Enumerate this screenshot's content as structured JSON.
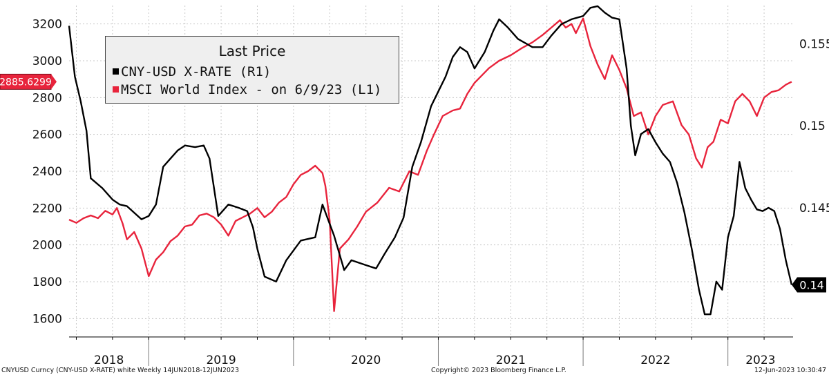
{
  "legend": {
    "title": "Last Price",
    "rows": [
      {
        "label": "CNY-USD X-RATE  (R1)",
        "color": "#000000"
      },
      {
        "label": "MSCI World Index -  on 6/9/23 (L1)",
        "color": "#e8243c"
      }
    ]
  },
  "footer": {
    "left": "CNYUSD Curncy (CNY-USD X-RATE) white  Weekly 14JUN2018-12JUN2023",
    "center": "Copyright© 2023 Bloomberg Finance L.P.",
    "right": "12-Jun-2023 10:30:47"
  },
  "chart_data": {
    "type": "line",
    "title": "Last Price",
    "x_range": [
      2018.45,
      2023.45
    ],
    "years": [
      "2018",
      "2019",
      "2020",
      "2021",
      "2022",
      "2023"
    ],
    "left_axis": {
      "ticks": [
        "3200",
        "3000",
        "2800",
        "2600",
        "2400",
        "2200",
        "2000",
        "1800",
        "1600"
      ],
      "range": [
        1500,
        3300
      ]
    },
    "right_axis": {
      "ticks": [
        "0.155",
        "0.15",
        "0.145"
      ],
      "range": [
        0.13712,
        0.15734
      ]
    },
    "last_value_labels": {
      "left": "2885.6299",
      "right": "0.14"
    },
    "grid": "dashed",
    "legend_position": "top-left",
    "series": [
      {
        "name": "CNY-USD X-RATE  (R1)",
        "axis": "right",
        "color": "#000000",
        "points": [
          [
            2018.45,
            0.1561
          ],
          [
            2018.49,
            0.153
          ],
          [
            2018.53,
            0.1515
          ],
          [
            2018.57,
            0.1497
          ],
          [
            2018.6,
            0.1468
          ],
          [
            2018.68,
            0.1462
          ],
          [
            2018.75,
            0.1455
          ],
          [
            2018.8,
            0.1452
          ],
          [
            2018.85,
            0.1451
          ],
          [
            2018.9,
            0.1447
          ],
          [
            2018.95,
            0.1443
          ],
          [
            2019.0,
            0.1445
          ],
          [
            2019.05,
            0.1452
          ],
          [
            2019.1,
            0.1475
          ],
          [
            2019.15,
            0.148
          ],
          [
            2019.2,
            0.1485
          ],
          [
            2019.25,
            0.1488
          ],
          [
            2019.32,
            0.1487
          ],
          [
            2019.38,
            0.1488
          ],
          [
            2019.42,
            0.148
          ],
          [
            2019.48,
            0.1445
          ],
          [
            2019.55,
            0.1452
          ],
          [
            2019.62,
            0.145
          ],
          [
            2019.68,
            0.1448
          ],
          [
            2019.72,
            0.1438
          ],
          [
            2019.75,
            0.1425
          ],
          [
            2019.8,
            0.1408
          ],
          [
            2019.88,
            0.1405
          ],
          [
            2019.95,
            0.1418
          ],
          [
            2020.05,
            0.143
          ],
          [
            2020.15,
            0.1432
          ],
          [
            2020.2,
            0.1452
          ],
          [
            2020.28,
            0.1433
          ],
          [
            2020.35,
            0.1412
          ],
          [
            2020.4,
            0.1418
          ],
          [
            2020.5,
            0.1415
          ],
          [
            2020.57,
            0.1413
          ],
          [
            2020.63,
            0.1422
          ],
          [
            2020.7,
            0.1432
          ],
          [
            2020.76,
            0.1444
          ],
          [
            2020.82,
            0.1475
          ],
          [
            2020.88,
            0.149
          ],
          [
            2020.95,
            0.1512
          ],
          [
            2021.05,
            0.153
          ],
          [
            2021.1,
            0.1542
          ],
          [
            2021.15,
            0.1548
          ],
          [
            2021.2,
            0.1545
          ],
          [
            2021.25,
            0.1535
          ],
          [
            2021.32,
            0.1545
          ],
          [
            2021.38,
            0.1558
          ],
          [
            2021.42,
            0.1565
          ],
          [
            2021.48,
            0.156
          ],
          [
            2021.55,
            0.1553
          ],
          [
            2021.65,
            0.1548
          ],
          [
            2021.72,
            0.1548
          ],
          [
            2021.78,
            0.1555
          ],
          [
            2021.85,
            0.1562
          ],
          [
            2021.92,
            0.1565
          ],
          [
            2022.0,
            0.1567
          ],
          [
            2022.05,
            0.1572
          ],
          [
            2022.1,
            0.1573
          ],
          [
            2022.15,
            0.1569
          ],
          [
            2022.2,
            0.1566
          ],
          [
            2022.25,
            0.1565
          ],
          [
            2022.3,
            0.1535
          ],
          [
            2022.33,
            0.15
          ],
          [
            2022.36,
            0.1482
          ],
          [
            2022.4,
            0.1495
          ],
          [
            2022.45,
            0.1498
          ],
          [
            2022.5,
            0.149
          ],
          [
            2022.55,
            0.1483
          ],
          [
            2022.6,
            0.1478
          ],
          [
            2022.65,
            0.1465
          ],
          [
            2022.7,
            0.1447
          ],
          [
            2022.75,
            0.1425
          ],
          [
            2022.8,
            0.14
          ],
          [
            2022.84,
            0.1385
          ],
          [
            2022.88,
            0.1385
          ],
          [
            2022.92,
            0.1405
          ],
          [
            2022.96,
            0.14
          ],
          [
            2023.0,
            0.1432
          ],
          [
            2023.04,
            0.1445
          ],
          [
            2023.08,
            0.1478
          ],
          [
            2023.12,
            0.1462
          ],
          [
            2023.16,
            0.1455
          ],
          [
            2023.2,
            0.1449
          ],
          [
            2023.24,
            0.1448
          ],
          [
            2023.28,
            0.145
          ],
          [
            2023.32,
            0.1448
          ],
          [
            2023.36,
            0.1437
          ],
          [
            2023.4,
            0.1418
          ],
          [
            2023.44,
            0.1403
          ]
        ]
      },
      {
        "name": "MSCI World Index -  on 6/9/23 (L1)",
        "axis": "left",
        "color": "#e8243c",
        "points": [
          [
            2018.45,
            2137
          ],
          [
            2018.5,
            2120
          ],
          [
            2018.55,
            2145
          ],
          [
            2018.6,
            2160
          ],
          [
            2018.65,
            2145
          ],
          [
            2018.7,
            2185
          ],
          [
            2018.75,
            2165
          ],
          [
            2018.78,
            2200
          ],
          [
            2018.82,
            2115
          ],
          [
            2018.85,
            2030
          ],
          [
            2018.9,
            2070
          ],
          [
            2018.95,
            1980
          ],
          [
            2019.0,
            1830
          ],
          [
            2019.05,
            1920
          ],
          [
            2019.1,
            1960
          ],
          [
            2019.15,
            2020
          ],
          [
            2019.2,
            2050
          ],
          [
            2019.25,
            2100
          ],
          [
            2019.3,
            2110
          ],
          [
            2019.35,
            2160
          ],
          [
            2019.4,
            2170
          ],
          [
            2019.45,
            2150
          ],
          [
            2019.5,
            2110
          ],
          [
            2019.55,
            2050
          ],
          [
            2019.6,
            2130
          ],
          [
            2019.65,
            2150
          ],
          [
            2019.7,
            2170
          ],
          [
            2019.75,
            2200
          ],
          [
            2019.8,
            2150
          ],
          [
            2019.85,
            2180
          ],
          [
            2019.9,
            2230
          ],
          [
            2019.95,
            2260
          ],
          [
            2020.0,
            2330
          ],
          [
            2020.05,
            2380
          ],
          [
            2020.1,
            2400
          ],
          [
            2020.15,
            2430
          ],
          [
            2020.2,
            2390
          ],
          [
            2020.22,
            2320
          ],
          [
            2020.25,
            2130
          ],
          [
            2020.28,
            1640
          ],
          [
            2020.32,
            1980
          ],
          [
            2020.38,
            2030
          ],
          [
            2020.44,
            2100
          ],
          [
            2020.5,
            2180
          ],
          [
            2020.58,
            2230
          ],
          [
            2020.66,
            2310
          ],
          [
            2020.73,
            2290
          ],
          [
            2020.8,
            2400
          ],
          [
            2020.86,
            2380
          ],
          [
            2020.92,
            2510
          ],
          [
            2020.97,
            2600
          ],
          [
            2021.03,
            2700
          ],
          [
            2021.1,
            2730
          ],
          [
            2021.15,
            2740
          ],
          [
            2021.2,
            2820
          ],
          [
            2021.25,
            2880
          ],
          [
            2021.3,
            2920
          ],
          [
            2021.35,
            2960
          ],
          [
            2021.42,
            3000
          ],
          [
            2021.5,
            3030
          ],
          [
            2021.58,
            3070
          ],
          [
            2021.65,
            3100
          ],
          [
            2021.72,
            3140
          ],
          [
            2021.78,
            3180
          ],
          [
            2021.84,
            3220
          ],
          [
            2021.88,
            3180
          ],
          [
            2021.92,
            3200
          ],
          [
            2021.95,
            3150
          ],
          [
            2022.0,
            3230
          ],
          [
            2022.05,
            3080
          ],
          [
            2022.1,
            2980
          ],
          [
            2022.15,
            2900
          ],
          [
            2022.2,
            3030
          ],
          [
            2022.25,
            2950
          ],
          [
            2022.3,
            2850
          ],
          [
            2022.35,
            2700
          ],
          [
            2022.4,
            2720
          ],
          [
            2022.45,
            2600
          ],
          [
            2022.5,
            2700
          ],
          [
            2022.55,
            2760
          ],
          [
            2022.62,
            2780
          ],
          [
            2022.68,
            2650
          ],
          [
            2022.73,
            2600
          ],
          [
            2022.78,
            2470
          ],
          [
            2022.82,
            2420
          ],
          [
            2022.86,
            2530
          ],
          [
            2022.9,
            2560
          ],
          [
            2022.95,
            2680
          ],
          [
            2023.0,
            2660
          ],
          [
            2023.05,
            2780
          ],
          [
            2023.1,
            2820
          ],
          [
            2023.15,
            2780
          ],
          [
            2023.2,
            2700
          ],
          [
            2023.25,
            2800
          ],
          [
            2023.3,
            2830
          ],
          [
            2023.35,
            2840
          ],
          [
            2023.4,
            2870
          ],
          [
            2023.44,
            2886
          ]
        ]
      }
    ]
  }
}
